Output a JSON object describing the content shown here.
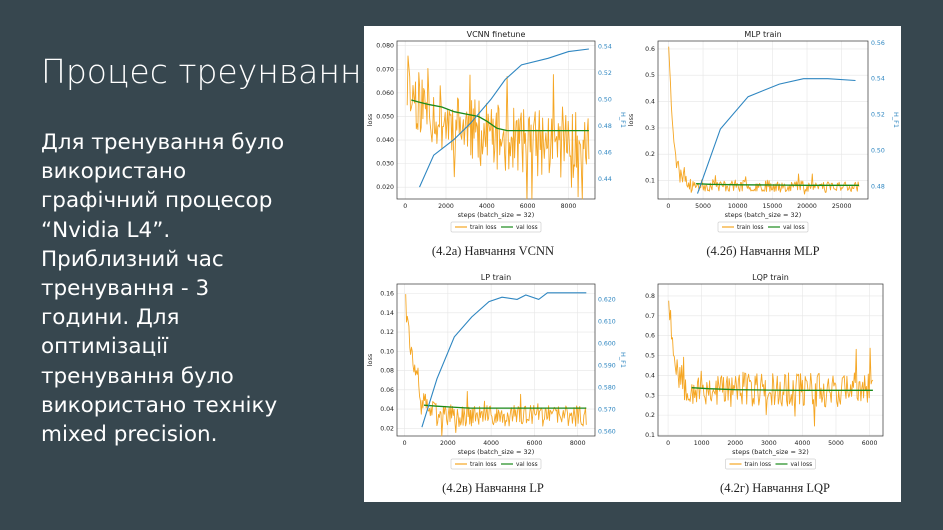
{
  "slide": {
    "title": "Процес треунвання",
    "body_lines": [
      "Для тренування було",
      "використано",
      "графічний процесор",
      "“Nvidia L4”.",
      "Приблизний час",
      "тренування - 3",
      "години. Для",
      "оптимізації",
      "тренування було",
      "використано техніку",
      "mixed precision."
    ]
  },
  "colors": {
    "background": "#37474f",
    "train": "#f5a623",
    "val": "#1a8a1a",
    "f1": "#2e86c1"
  },
  "chart_data": [
    {
      "type": "line",
      "title": "VCNN finetune",
      "caption": "(4.2а) Навчання VCNN",
      "xlabel": "steps (batch_size = 32)",
      "ylabel": "loss",
      "y2label": "H_F1",
      "xlim": [
        -400,
        9300
      ],
      "xticks": [
        0,
        2000,
        4000,
        6000,
        8000
      ],
      "ylim": [
        0.015,
        0.082
      ],
      "yticks": [
        0.02,
        0.03,
        0.04,
        0.05,
        0.06,
        0.07,
        0.08
      ],
      "y2lim": [
        0.425,
        0.544
      ],
      "y2ticks": [
        0.44,
        0.46,
        0.48,
        0.5,
        0.52,
        0.54
      ],
      "legend": [
        "train loss",
        "val loss"
      ],
      "train": {
        "x0": 100,
        "x1": 9000,
        "start": 0.062,
        "end": 0.037,
        "decay": 2400,
        "noise": 0.014,
        "seed": 11
      },
      "val": {
        "x": [
          300,
          700,
          1200,
          1800,
          2400,
          3000,
          3600,
          4000,
          4500,
          5000,
          6000,
          7000,
          8000,
          9000
        ],
        "y": [
          0.057,
          0.056,
          0.055,
          0.054,
          0.052,
          0.051,
          0.05,
          0.048,
          0.045,
          0.044,
          0.044,
          0.044,
          0.044,
          0.044
        ]
      },
      "f1": {
        "x": [
          700,
          1400,
          2400,
          3200,
          4200,
          4900,
          5700,
          7000,
          8000,
          9000
        ],
        "y": [
          0.434,
          0.458,
          0.47,
          0.482,
          0.5,
          0.515,
          0.526,
          0.531,
          0.536,
          0.538
        ]
      }
    },
    {
      "type": "line",
      "title": "MLP train",
      "caption": "(4.2б) Навчання MLP",
      "xlabel": "steps (batch_size = 32)",
      "ylabel": "loss",
      "y2label": "H_F1",
      "xlim": [
        -1500,
        28800
      ],
      "xticks": [
        0,
        5000,
        10000,
        15000,
        20000,
        25000
      ],
      "ylim": [
        0.03,
        0.63
      ],
      "yticks": [
        0.1,
        0.2,
        0.3,
        0.4,
        0.5,
        0.6
      ],
      "y2lim": [
        0.473,
        0.561
      ],
      "y2ticks": [
        0.48,
        0.5,
        0.52,
        0.54,
        0.56
      ],
      "legend": [
        "train loss",
        "val loss"
      ],
      "train": {
        "x0": 50,
        "x1": 27500,
        "start": 0.62,
        "end": 0.08,
        "decay": 700,
        "noise": 0.022,
        "seed": 23
      },
      "val": {
        "x": [
          4000,
          6000,
          10000,
          15000,
          20000,
          25000,
          27500
        ],
        "y": [
          0.088,
          0.086,
          0.084,
          0.083,
          0.082,
          0.082,
          0.082
        ]
      },
      "f1": {
        "x": [
          4200,
          7500,
          11500,
          16000,
          19500,
          23000,
          27000
        ],
        "y": [
          0.476,
          0.512,
          0.53,
          0.537,
          0.54,
          0.54,
          0.539
        ]
      }
    },
    {
      "type": "line",
      "title": "LP train",
      "caption": "(4.2в) Навчання LP",
      "xlabel": "steps (batch_size = 32)",
      "ylabel": "loss",
      "y2label": "H_F1",
      "xlim": [
        -350,
        8800
      ],
      "xticks": [
        0,
        2000,
        4000,
        6000,
        8000
      ],
      "ylim": [
        0.012,
        0.17
      ],
      "yticks": [
        0.02,
        0.04,
        0.06,
        0.08,
        0.1,
        0.12,
        0.14,
        0.16
      ],
      "y2lim": [
        0.558,
        0.627
      ],
      "y2ticks": [
        0.56,
        0.57,
        0.58,
        0.59,
        0.6,
        0.61,
        0.62
      ],
      "legend": [
        "train loss",
        "val loss"
      ],
      "train": {
        "x0": 50,
        "x1": 8400,
        "start": 0.165,
        "end": 0.033,
        "decay": 380,
        "noise": 0.011,
        "seed": 37
      },
      "val": {
        "x": [
          900,
          1500,
          2200,
          3000,
          4000,
          5000,
          6000,
          7000,
          8400
        ],
        "y": [
          0.044,
          0.043,
          0.042,
          0.041,
          0.041,
          0.041,
          0.041,
          0.041,
          0.041
        ]
      },
      "f1": {
        "x": [
          800,
          1500,
          2300,
          3100,
          3900,
          4500,
          5200,
          5600,
          6200,
          6600,
          7400,
          8400
        ],
        "y": [
          0.562,
          0.584,
          0.603,
          0.612,
          0.619,
          0.621,
          0.62,
          0.622,
          0.62,
          0.623,
          0.623,
          0.623
        ]
      }
    },
    {
      "type": "line",
      "title": "LQP train",
      "caption": "(4.2г) Навчання LQP",
      "xlabel": "steps (batch_size = 32)",
      "ylabel": "",
      "y2label": "",
      "xlim": [
        -300,
        6400
      ],
      "xticks": [
        0,
        1000,
        2000,
        3000,
        4000,
        5000,
        6000
      ],
      "ylim": [
        0.095,
        0.86
      ],
      "yticks": [
        0.1,
        0.2,
        0.3,
        0.4,
        0.5,
        0.6,
        0.7,
        0.8
      ],
      "legend": [
        "train loss",
        "val loss"
      ],
      "train": {
        "x0": 20,
        "x1": 6100,
        "start": 0.82,
        "end": 0.33,
        "decay": 180,
        "noise": 0.09,
        "seed": 53
      },
      "val": {
        "x": [
          700,
          1200,
          2000,
          3000,
          4000,
          5000,
          6100
        ],
        "y": [
          0.338,
          0.333,
          0.328,
          0.326,
          0.325,
          0.325,
          0.325
        ]
      }
    }
  ]
}
